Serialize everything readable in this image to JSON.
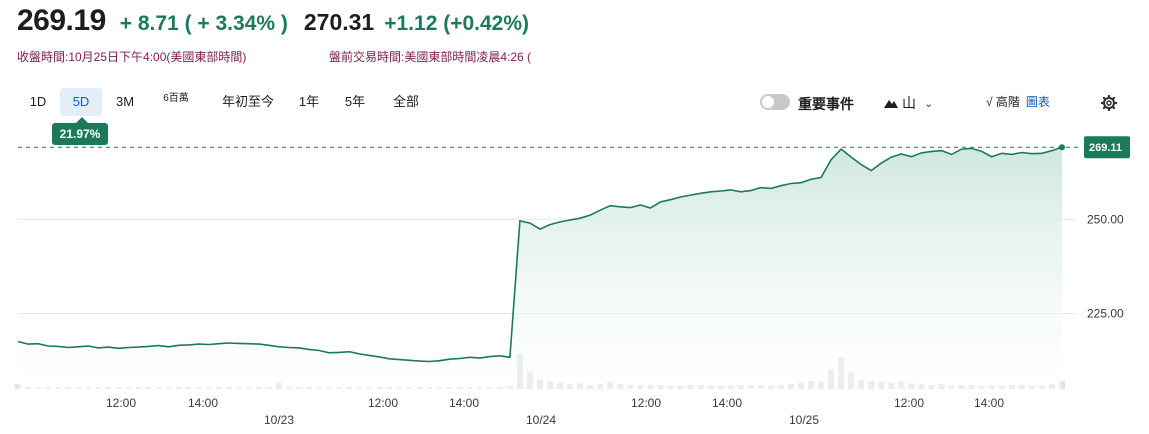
{
  "quote": {
    "price": "269.19",
    "change": "+ 8.71 ( + 3.34% )",
    "change_color": "#1c7a5c",
    "close_time": "收盤時間:10月25日下午4:00(美國東部時間)",
    "premarket_price": "270.31",
    "premarket_change": "+1.12 (+0.42%)",
    "premarket_time": "盤前交易時間:美國東部時間凌晨4:26 ("
  },
  "range_tabs": [
    "1D",
    "5D",
    "3M",
    "6百萬",
    "年初至今",
    "1年",
    "5年",
    "全部"
  ],
  "active_tab": "5D",
  "period_change_badge": "21.97%",
  "controls": {
    "events_label": "重要事件",
    "events_enabled": false,
    "chart_type_icon": "mountain-icon",
    "chart_type_label": "山",
    "hilo_label": "√ 高階",
    "chart_link_label": "圖表",
    "settings_icon": "gear-icon"
  },
  "chart_data": {
    "type": "area",
    "y_ticks": [
      "250.00",
      "225.00"
    ],
    "ylim": [
      205,
      275
    ],
    "last_price_label": "269.11",
    "baseline_price": 269.11,
    "x_tick_labels_time": [
      "12:00",
      "14:00",
      "12:00",
      "14:00",
      "12:00",
      "14:00",
      "12:00",
      "14:00"
    ],
    "x_tick_labels_date": [
      "10/23",
      "10/24",
      "10/25"
    ],
    "line_color": "#1c7a5c",
    "fill_color": "#d8ece5",
    "series": [
      {
        "values": [
          217.6,
          216.9,
          217.0,
          216.4,
          216.3,
          216.0,
          216.2,
          216.4,
          215.9,
          216.1,
          215.8,
          216.0,
          216.1,
          216.3,
          216.5,
          216.2,
          216.6,
          216.7,
          216.9,
          216.8,
          217.0,
          217.2,
          217.1,
          217.0,
          216.9,
          216.6,
          216.2,
          216.0,
          215.9,
          215.5,
          215.2,
          214.6,
          214.7,
          214.9,
          214.3,
          213.9,
          213.5,
          213.0,
          212.8,
          212.6,
          212.4,
          212.3,
          212.5,
          212.9,
          213.1,
          213.4,
          213.2,
          213.6,
          213.8,
          213.4,
          249.6,
          249.0,
          247.4,
          248.6,
          249.3,
          249.8,
          250.3,
          251.1,
          252.4,
          253.6,
          253.3,
          253.1,
          253.8,
          253.0,
          254.6,
          255.2,
          255.9,
          256.4,
          256.9,
          257.3,
          257.5,
          257.8,
          257.3,
          257.6,
          258.4,
          258.2,
          258.9,
          259.5,
          259.7,
          260.6,
          261.1,
          265.8,
          268.6,
          266.5,
          264.5,
          262.9,
          264.9,
          266.5,
          267.3,
          266.6,
          267.6,
          268.0,
          268.2,
          267.2,
          268.6,
          268.8,
          268.0,
          266.6,
          267.5,
          267.2,
          267.7,
          267.4,
          267.5,
          268.2,
          269.11
        ],
        "volume": [
          0.06,
          0.03,
          0.02,
          0.02,
          0.02,
          0.02,
          0.02,
          0.02,
          0.02,
          0.02,
          0.02,
          0.02,
          0.02,
          0.02,
          0.02,
          0.02,
          0.02,
          0.02,
          0.02,
          0.02,
          0.02,
          0.02,
          0.02,
          0.02,
          0.02,
          0.02,
          0.08,
          0.03,
          0.02,
          0.02,
          0.02,
          0.02,
          0.02,
          0.02,
          0.02,
          0.02,
          0.02,
          0.02,
          0.02,
          0.02,
          0.02,
          0.02,
          0.02,
          0.02,
          0.02,
          0.02,
          0.02,
          0.02,
          0.02,
          0.04,
          0.44,
          0.22,
          0.12,
          0.1,
          0.08,
          0.06,
          0.07,
          0.05,
          0.06,
          0.09,
          0.06,
          0.05,
          0.05,
          0.05,
          0.05,
          0.04,
          0.04,
          0.05,
          0.05,
          0.04,
          0.04,
          0.04,
          0.05,
          0.05,
          0.05,
          0.04,
          0.05,
          0.06,
          0.08,
          0.1,
          0.09,
          0.25,
          0.4,
          0.22,
          0.12,
          0.1,
          0.09,
          0.08,
          0.1,
          0.07,
          0.06,
          0.05,
          0.06,
          0.04,
          0.05,
          0.05,
          0.04,
          0.05,
          0.04,
          0.05,
          0.05,
          0.04,
          0.04,
          0.06,
          0.1
        ]
      }
    ]
  }
}
